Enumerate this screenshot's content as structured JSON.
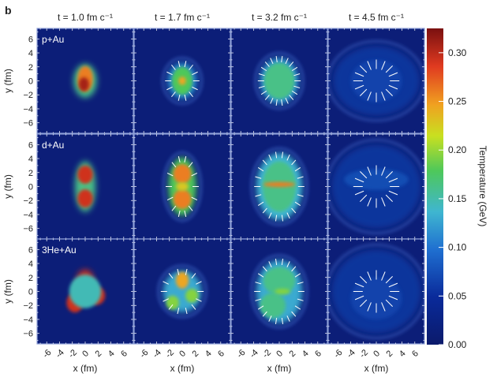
{
  "panel_letter": "b",
  "chart_data": {
    "type": "heatmap",
    "column_titles": [
      "t = 1.0 fm c⁻¹",
      "t = 1.7 fm c⁻¹",
      "t = 3.2 fm c⁻¹",
      "t = 4.5 fm c⁻¹"
    ],
    "times": [
      1.0,
      1.7,
      3.2,
      4.5
    ],
    "time_unit": "fm c⁻¹",
    "row_labels": [
      "p+Au",
      "d+Au",
      "3He+Au"
    ],
    "xlabel": "x (fm)",
    "ylabel": "y (fm)",
    "x_ticks": [
      "-6",
      "-4",
      "-2",
      "0",
      "2",
      "4",
      "6"
    ],
    "y_ticks": [
      "6",
      "4",
      "2",
      "0",
      "−2",
      "−4",
      "−6"
    ],
    "xlim": [
      -7.5,
      7.5
    ],
    "ylim": [
      -7.5,
      7.5
    ],
    "colorbar": {
      "label": "Temperature (GeV)",
      "ticks": [
        "0.00",
        "0.05",
        "0.10",
        "0.15",
        "0.20",
        "0.25",
        "0.30"
      ],
      "range": [
        0,
        0.325
      ],
      "colormap": "jet"
    }
  }
}
